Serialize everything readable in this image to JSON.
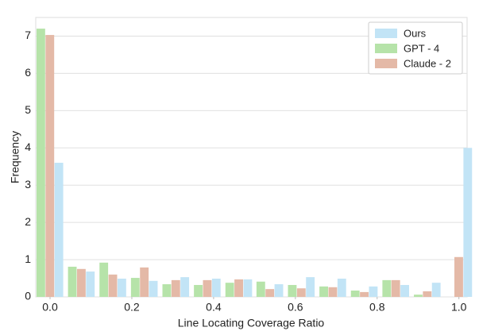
{
  "chart_data": {
    "type": "bar",
    "xlabel": "Line Locating Coverage Ratio",
    "ylabel": "Frequency",
    "x": [
      0,
      0.077,
      0.154,
      0.231,
      0.308,
      0.385,
      0.462,
      0.538,
      0.615,
      0.692,
      0.769,
      0.846,
      0.923,
      1
    ],
    "series": [
      {
        "name": "Ours",
        "color": "#c2e4f6",
        "values": [
          3.6,
          0.68,
          0.49,
          0.43,
          0.53,
          0.49,
          0.47,
          0.34,
          0.53,
          0.49,
          0.28,
          0.32,
          0.38,
          4.0
        ]
      },
      {
        "name": "GPT - 4",
        "color": "#b6e3a9",
        "values": [
          7.2,
          0.81,
          0.92,
          0.51,
          0.34,
          0.32,
          0.38,
          0.41,
          0.32,
          0.28,
          0.17,
          0.45,
          0.06,
          0
        ]
      },
      {
        "name": "Claude - 2",
        "color": "#e4b9a7",
        "values": [
          7.03,
          0.75,
          0.6,
          0.79,
          0.45,
          0.45,
          0.47,
          0.21,
          0.23,
          0.26,
          0.13,
          0.45,
          0.15,
          1.07
        ]
      }
    ],
    "xlim": [
      -0.035,
      1.02
    ],
    "xticks": [
      {
        "value": 0,
        "label": "0.0"
      },
      0.2,
      0.4,
      0.6,
      0.8,
      {
        "value": 1,
        "label": "1.0"
      }
    ],
    "ylim": [
      0,
      7.5
    ],
    "yticks": [
      0,
      1,
      2,
      3,
      4,
      5,
      6,
      7
    ],
    "grid": true,
    "legend": "upper right"
  }
}
